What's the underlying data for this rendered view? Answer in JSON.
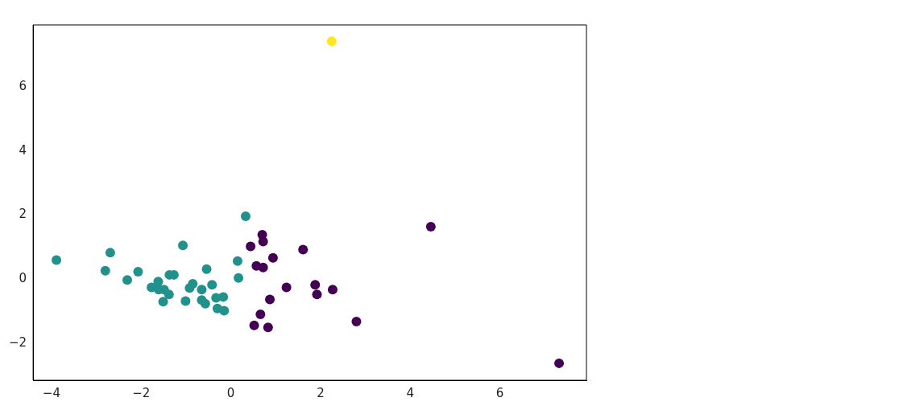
{
  "chart_data": {
    "type": "scatter",
    "xlim": [
      -4.41,
      7.93
    ],
    "ylim": [
      -3.16,
      7.93
    ],
    "xticks": [
      -4,
      -2,
      0,
      2,
      4,
      6
    ],
    "yticks": [
      -2,
      0,
      2,
      4,
      6
    ],
    "grid": false,
    "legend": false,
    "marker": "circle",
    "series": [
      {
        "color": "#21918c",
        "x": [
          -3.89,
          -2.8,
          -2.69,
          -2.31,
          -2.07,
          -1.07,
          -1.77,
          -1.62,
          -1.61,
          -1.51,
          -1.37,
          -1.27,
          -1.38,
          -1.01,
          -0.92,
          -0.65,
          -0.54,
          -0.42,
          -0.65,
          -0.57,
          -0.33,
          -0.3,
          -0.15,
          -0.17,
          0.15,
          0.17,
          0.33,
          -1.49,
          -0.85
        ],
        "values": [
          0.59,
          0.26,
          0.82,
          -0.03,
          0.23,
          1.05,
          -0.26,
          -0.08,
          -0.33,
          -0.71,
          0.13,
          0.13,
          -0.48,
          -0.69,
          -0.28,
          -0.33,
          0.31,
          -0.18,
          -0.66,
          -0.77,
          -0.59,
          -0.92,
          -0.99,
          -0.56,
          0.56,
          0.03,
          1.96,
          -0.33,
          -0.15
        ]
      },
      {
        "color": "#440154",
        "x": [
          0.7,
          0.72,
          0.44,
          0.94,
          0.57,
          0.72,
          1.61,
          1.24,
          1.88,
          1.92,
          2.27,
          0.87,
          0.66,
          0.52,
          0.83,
          2.8,
          4.46,
          7.32
        ],
        "values": [
          1.38,
          1.17,
          1.02,
          0.66,
          0.41,
          0.36,
          0.92,
          -0.26,
          -0.18,
          -0.48,
          -0.33,
          -0.64,
          -1.1,
          -1.45,
          -1.51,
          -1.33,
          1.63,
          -2.63
        ]
      },
      {
        "color": "#fde725",
        "x": [
          2.25
        ],
        "values": [
          7.42
        ]
      }
    ]
  }
}
